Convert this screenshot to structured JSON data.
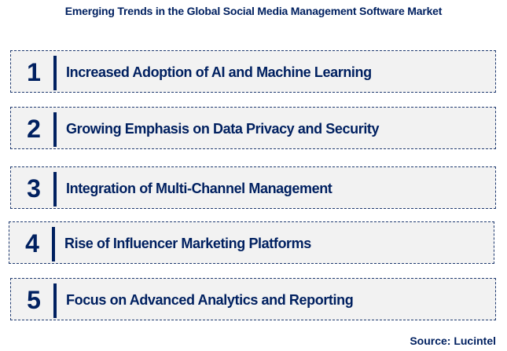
{
  "title": "Emerging Trends in the Global Social Media Management Software Market",
  "items": [
    {
      "number": "1",
      "label": "Increased Adoption of AI and Machine Learning"
    },
    {
      "number": "2",
      "label": "Growing Emphasis on Data Privacy and Security"
    },
    {
      "number": "3",
      "label": "Integration of Multi-Channel Management"
    },
    {
      "number": "4",
      "label": "Rise of Influencer Marketing Platforms"
    },
    {
      "number": "5",
      "label": "Focus on Advanced Analytics and Reporting"
    }
  ],
  "source": "Source: Lucintel",
  "colors": {
    "accent": "#002060",
    "box_fill": "#f2f2f2"
  }
}
